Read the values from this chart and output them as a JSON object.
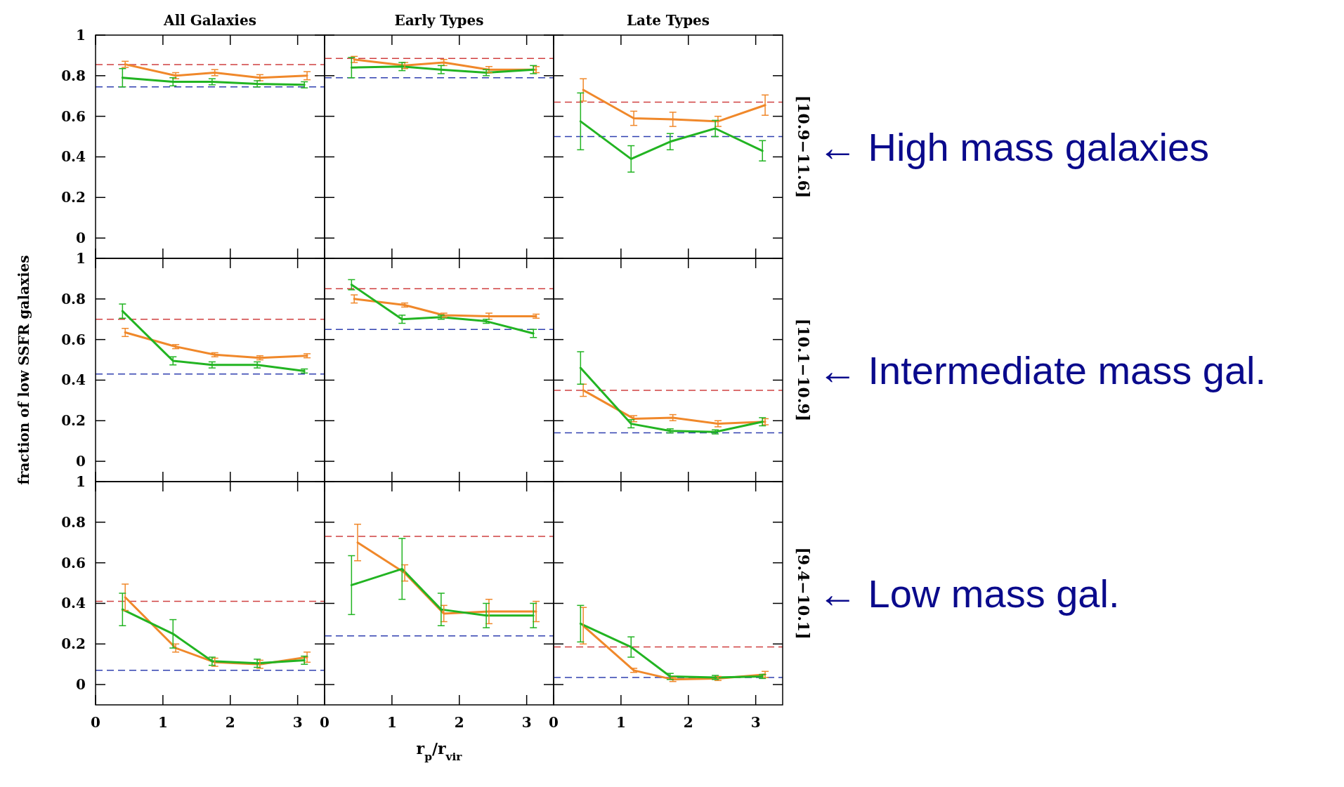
{
  "chart_data": [
    {
      "type": "line",
      "title": "All Galaxies",
      "x": [
        0.44,
        1.19,
        1.77,
        2.44,
        3.14
      ],
      "xlim": [
        0,
        3.4
      ],
      "ylim": [
        -0.1,
        1
      ],
      "xticks": [
        0,
        1,
        2,
        3
      ],
      "yticks": [
        0,
        0.2,
        0.4,
        0.6,
        0.8,
        1
      ],
      "tick_labels": "y",
      "series": [
        {
          "color": "#f0882a",
          "values": [
            0.856,
            0.8,
            0.815,
            0.79,
            0.8
          ],
          "errors": [
            0.015,
            0.015,
            0.015,
            0.015,
            0.02
          ]
        },
        {
          "color": "#22b422",
          "x": [
            0.4,
            1.15,
            1.73,
            2.4,
            3.1
          ],
          "values": [
            0.79,
            0.77,
            0.77,
            0.76,
            0.755
          ],
          "errors": [
            0.045,
            0.02,
            0.015,
            0.015,
            0.015
          ]
        }
      ],
      "ref_lines": [
        {
          "axis": "y",
          "value": 0.855,
          "color": "#d04040",
          "line_style": "dashed"
        },
        {
          "axis": "y",
          "value": 0.745,
          "color": "#3040b0",
          "line_style": "dashed"
        }
      ]
    },
    {
      "type": "line",
      "title": "Early Types",
      "x": [
        0.44,
        1.19,
        1.77,
        2.44,
        3.14
      ],
      "xlim": [
        0,
        3.4
      ],
      "ylim": [
        -0.1,
        1
      ],
      "xticks": [
        0,
        1,
        2,
        3
      ],
      "yticks": [
        0,
        0.2,
        0.4,
        0.6,
        0.8,
        1
      ],
      "tick_labels": false,
      "series": [
        {
          "color": "#f0882a",
          "values": [
            0.88,
            0.85,
            0.865,
            0.83,
            0.83
          ],
          "errors": [
            0.015,
            0.015,
            0.015,
            0.015,
            0.015
          ]
        },
        {
          "color": "#22b422",
          "x": [
            0.4,
            1.15,
            1.73,
            2.4,
            3.1
          ],
          "values": [
            0.84,
            0.845,
            0.83,
            0.815,
            0.83
          ],
          "errors": [
            0.05,
            0.02,
            0.02,
            0.015,
            0.02
          ]
        }
      ],
      "ref_lines": [
        {
          "axis": "y",
          "value": 0.885,
          "color": "#d04040",
          "line_style": "dashed"
        },
        {
          "axis": "y",
          "value": 0.79,
          "color": "#3040b0",
          "line_style": "dashed"
        }
      ]
    },
    {
      "type": "line",
      "title": "Late Types",
      "y2label": "[10.9−11.6]",
      "annotations": [
        "← High mass galaxies"
      ],
      "x": [
        0.44,
        1.19,
        1.77,
        2.44,
        3.14
      ],
      "xlim": [
        0,
        3.4
      ],
      "ylim": [
        -0.1,
        1
      ],
      "xticks": [
        0,
        1,
        2,
        3
      ],
      "yticks": [
        0,
        0.2,
        0.4,
        0.6,
        0.8,
        1
      ],
      "tick_labels": false,
      "series": [
        {
          "color": "#f0882a",
          "values": [
            0.73,
            0.59,
            0.585,
            0.575,
            0.655
          ],
          "errors": [
            0.055,
            0.035,
            0.035,
            0.025,
            0.05
          ]
        },
        {
          "color": "#22b422",
          "x": [
            0.4,
            1.15,
            1.73,
            2.4,
            3.1
          ],
          "values": [
            0.575,
            0.39,
            0.475,
            0.54,
            0.43
          ],
          "errors": [
            0.14,
            0.065,
            0.04,
            0.04,
            0.05
          ]
        }
      ],
      "ref_lines": [
        {
          "axis": "y",
          "value": 0.67,
          "color": "#d04040",
          "line_style": "dashed"
        },
        {
          "axis": "y",
          "value": 0.5,
          "color": "#3040b0",
          "line_style": "dashed"
        }
      ]
    },
    {
      "type": "line",
      "ylabel": "fraction of low SSFR galaxies",
      "x": [
        0.44,
        1.19,
        1.77,
        2.44,
        3.14
      ],
      "xlim": [
        0,
        3.4
      ],
      "ylim": [
        -0.1,
        1
      ],
      "xticks": [
        0,
        1,
        2,
        3
      ],
      "yticks": [
        0,
        0.2,
        0.4,
        0.6,
        0.8,
        1
      ],
      "tick_labels": "y",
      "series": [
        {
          "color": "#f0882a",
          "values": [
            0.635,
            0.565,
            0.525,
            0.51,
            0.52
          ],
          "errors": [
            0.02,
            0.01,
            0.01,
            0.01,
            0.01
          ]
        },
        {
          "color": "#22b422",
          "x": [
            0.4,
            1.15,
            1.73,
            2.4,
            3.1
          ],
          "values": [
            0.74,
            0.495,
            0.475,
            0.475,
            0.445
          ],
          "errors": [
            0.035,
            0.02,
            0.015,
            0.015,
            0.01
          ]
        }
      ],
      "ref_lines": [
        {
          "axis": "y",
          "value": 0.7,
          "color": "#d04040",
          "line_style": "dashed"
        },
        {
          "axis": "y",
          "value": 0.43,
          "color": "#3040b0",
          "line_style": "dashed"
        }
      ]
    },
    {
      "type": "line",
      "x": [
        0.44,
        1.19,
        1.77,
        2.44,
        3.14
      ],
      "xlim": [
        0,
        3.4
      ],
      "ylim": [
        -0.1,
        1
      ],
      "xticks": [
        0,
        1,
        2,
        3
      ],
      "yticks": [
        0,
        0.2,
        0.4,
        0.6,
        0.8,
        1
      ],
      "tick_labels": false,
      "series": [
        {
          "color": "#f0882a",
          "values": [
            0.8,
            0.77,
            0.72,
            0.715,
            0.715
          ],
          "errors": [
            0.02,
            0.01,
            0.01,
            0.015,
            0.01
          ]
        },
        {
          "color": "#22b422",
          "x": [
            0.4,
            1.15,
            1.73,
            2.4,
            3.1
          ],
          "values": [
            0.87,
            0.7,
            0.71,
            0.69,
            0.63
          ],
          "errors": [
            0.025,
            0.02,
            0.01,
            0.01,
            0.02
          ]
        }
      ],
      "ref_lines": [
        {
          "axis": "y",
          "value": 0.85,
          "color": "#d04040",
          "line_style": "dashed"
        },
        {
          "axis": "y",
          "value": 0.65,
          "color": "#3040b0",
          "line_style": "dashed"
        }
      ]
    },
    {
      "type": "line",
      "y2label": "[10.1−10.9]",
      "annotations": [
        "← Intermediate mass gal."
      ],
      "x": [
        0.44,
        1.19,
        1.77,
        2.44,
        3.14
      ],
      "xlim": [
        0,
        3.4
      ],
      "ylim": [
        -0.1,
        1
      ],
      "xticks": [
        0,
        1,
        2,
        3
      ],
      "yticks": [
        0,
        0.2,
        0.4,
        0.6,
        0.8,
        1
      ],
      "tick_labels": false,
      "series": [
        {
          "color": "#f0882a",
          "values": [
            0.35,
            0.21,
            0.215,
            0.185,
            0.195
          ],
          "errors": [
            0.03,
            0.015,
            0.015,
            0.015,
            0.015
          ]
        },
        {
          "color": "#22b422",
          "x": [
            0.4,
            1.15,
            1.73,
            2.4,
            3.1
          ],
          "values": [
            0.46,
            0.185,
            0.15,
            0.145,
            0.195
          ],
          "errors": [
            0.08,
            0.02,
            0.01,
            0.01,
            0.02
          ]
        }
      ],
      "ref_lines": [
        {
          "axis": "y",
          "value": 0.35,
          "color": "#d04040",
          "line_style": "dashed"
        },
        {
          "axis": "y",
          "value": 0.14,
          "color": "#3040b0",
          "line_style": "dashed"
        }
      ]
    },
    {
      "type": "line",
      "x": [
        0.44,
        1.19,
        1.77,
        2.44,
        3.14
      ],
      "xlim": [
        0,
        3.4
      ],
      "ylim": [
        -0.1,
        1
      ],
      "xticks": [
        0,
        1,
        2,
        3
      ],
      "yticks": [
        0,
        0.2,
        0.4,
        0.6,
        0.8,
        1
      ],
      "series": [
        {
          "color": "#f0882a",
          "values": [
            0.43,
            0.18,
            0.11,
            0.1,
            0.135
          ],
          "errors": [
            0.065,
            0.02,
            0.02,
            0.02,
            0.025
          ]
        },
        {
          "color": "#22b422",
          "x": [
            0.4,
            1.15,
            1.73,
            2.4,
            3.1
          ],
          "values": [
            0.37,
            0.25,
            0.115,
            0.105,
            0.12
          ],
          "errors": [
            0.08,
            0.07,
            0.02,
            0.02,
            0.02
          ]
        }
      ],
      "ref_lines": [
        {
          "axis": "y",
          "value": 0.41,
          "color": "#d04040",
          "line_style": "dashed"
        },
        {
          "axis": "y",
          "value": 0.07,
          "color": "#3040b0",
          "line_style": "dashed"
        }
      ]
    },
    {
      "type": "line",
      "xlabel": "r$_{p}$/r$_{vir}$",
      "x": [
        0.49,
        1.19,
        1.77,
        2.44,
        3.14
      ],
      "xlim": [
        0,
        3.4
      ],
      "ylim": [
        -0.1,
        1
      ],
      "xticks": [
        0,
        1,
        2,
        3
      ],
      "yticks": [
        0,
        0.2,
        0.4,
        0.6,
        0.8,
        1
      ],
      "tick_labels": "x",
      "series": [
        {
          "color": "#f0882a",
          "values": [
            0.7,
            0.55,
            0.35,
            0.36,
            0.36
          ],
          "errors": [
            0.09,
            0.04,
            0.04,
            0.06,
            0.05
          ]
        },
        {
          "color": "#22b422",
          "x": [
            0.4,
            1.15,
            1.73,
            2.4,
            3.1
          ],
          "values": [
            0.49,
            0.57,
            0.37,
            0.34,
            0.34
          ],
          "errors": [
            0.145,
            0.15,
            0.08,
            0.06,
            0.06
          ]
        }
      ],
      "ref_lines": [
        {
          "axis": "y",
          "value": 0.73,
          "color": "#d04040",
          "line_style": "dashed"
        },
        {
          "axis": "y",
          "value": 0.24,
          "color": "#3040b0",
          "line_style": "dashed"
        }
      ]
    },
    {
      "type": "line",
      "y2label": "[9.4−10.1]",
      "annotations": [
        "← Low mass gal."
      ],
      "x": [
        0.44,
        1.19,
        1.77,
        2.44,
        3.14
      ],
      "xlim": [
        0,
        3.4
      ],
      "ylim": [
        -0.1,
        1
      ],
      "xticks": [
        0,
        1,
        2,
        3
      ],
      "yticks": [
        0,
        0.2,
        0.4,
        0.6,
        0.8,
        1
      ],
      "tick_labels": "x",
      "series": [
        {
          "color": "#f0882a",
          "values": [
            0.29,
            0.07,
            0.025,
            0.03,
            0.05
          ],
          "errors": [
            0.09,
            0.01,
            0.01,
            0.01,
            0.015
          ]
        },
        {
          "color": "#22b422",
          "x": [
            0.4,
            1.15,
            1.73,
            2.4,
            3.1
          ],
          "values": [
            0.3,
            0.185,
            0.04,
            0.035,
            0.04
          ],
          "errors": [
            0.09,
            0.05,
            0.015,
            0.01,
            0.01
          ]
        }
      ],
      "ref_lines": [
        {
          "axis": "y",
          "value": 0.185,
          "color": "#d04040",
          "line_style": "dashed"
        },
        {
          "axis": "y",
          "value": 0.035,
          "color": "#3040b0",
          "line_style": "dashed"
        }
      ]
    }
  ]
}
